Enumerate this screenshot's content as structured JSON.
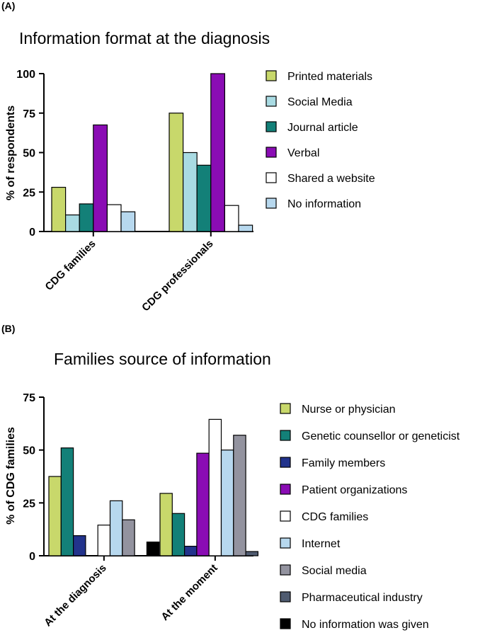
{
  "chart_data": [
    {
      "panel_label": "(A)",
      "type": "bar",
      "title": "Information format at the diagnosis",
      "xlabel": "",
      "ylabel": "% of respondents",
      "ylim": [
        0,
        100
      ],
      "yticks": [
        0,
        25,
        50,
        75,
        100
      ],
      "categories": [
        "CDG families",
        "CDG professionals"
      ],
      "legend_position": "right",
      "series": [
        {
          "name": "Printed materials",
          "color": "#c8d86b",
          "values": [
            28,
            75
          ]
        },
        {
          "name": "Social Media",
          "color": "#a9dbe3",
          "values": [
            10.5,
            50
          ]
        },
        {
          "name": "Journal article",
          "color": "#138078",
          "values": [
            17.5,
            42
          ]
        },
        {
          "name": "Verbal",
          "color": "#8a0cb4",
          "values": [
            67.5,
            100
          ]
        },
        {
          "name": "Shared a website",
          "color": "#ffffff",
          "values": [
            17,
            16.5
          ]
        },
        {
          "name": "No information",
          "color": "#b7d8ee",
          "values": [
            12.5,
            4
          ]
        }
      ]
    },
    {
      "panel_label": "(B)",
      "type": "bar",
      "title": "Families source of information",
      "xlabel": "",
      "ylabel": "% of CDG families",
      "ylim": [
        0,
        75
      ],
      "yticks": [
        0,
        25,
        50,
        75
      ],
      "categories": [
        "At the diagnosis",
        "At the moment"
      ],
      "legend_position": "right",
      "series": [
        {
          "name": "Nurse or physician",
          "color": "#c8d86b",
          "values": [
            37.5,
            29.5
          ]
        },
        {
          "name": "Genetic counsellor or geneticist",
          "color": "#138078",
          "values": [
            51,
            20
          ]
        },
        {
          "name": "Family members",
          "color": "#22338c",
          "values": [
            9.5,
            4.5
          ]
        },
        {
          "name": "Patient organizations",
          "color": "#8a0cb4",
          "values": [
            0,
            48.5
          ]
        },
        {
          "name": "CDG families",
          "color": "#ffffff",
          "values": [
            14.5,
            64.5
          ]
        },
        {
          "name": "Internet",
          "color": "#b7d8ee",
          "values": [
            26,
            50
          ]
        },
        {
          "name": "Social media",
          "color": "#93939f",
          "values": [
            17,
            57
          ]
        },
        {
          "name": "Pharmaceutical industry",
          "color": "#4f5b70",
          "values": [
            0,
            2
          ]
        },
        {
          "name": "No information was given",
          "color": "#000000",
          "values": [
            6.5,
            0
          ]
        }
      ]
    }
  ]
}
